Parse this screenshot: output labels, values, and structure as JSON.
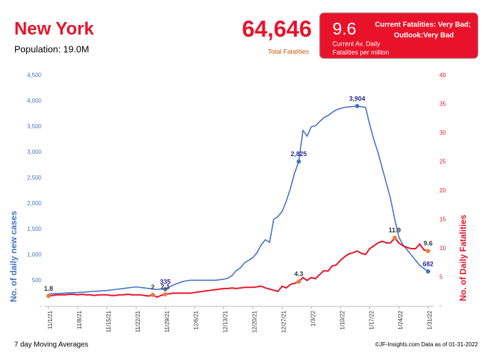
{
  "header": {
    "title": "New York",
    "population": "Population: 19.0M",
    "total": "64,646",
    "total_label": "Total Fatalities",
    "current": "9.6",
    "current_label_1": "Current Av. Daily",
    "current_label_2": "Fatalities per million",
    "status": "Current Fatalities: Very Bad;",
    "outlook": "Outlook:Very Bad"
  },
  "footer": {
    "left": "7 day Moving Averages",
    "right": "©JF-Insights.com  Data as of 01-31-2022"
  },
  "chart_data": {
    "type": "line",
    "ylabel": "No. of daily new  cases",
    "y2label": "No. of Daily Fatalities",
    "categories": [
      "11/1/21",
      null,
      null,
      null,
      null,
      null,
      null,
      "11/8/21",
      null,
      null,
      null,
      null,
      null,
      null,
      "11/15/21",
      null,
      null,
      null,
      null,
      null,
      null,
      "11/22/21",
      null,
      null,
      null,
      null,
      null,
      null,
      "11/29/21",
      null,
      null,
      null,
      null,
      null,
      null,
      "12/6/21",
      null,
      null,
      null,
      null,
      null,
      null,
      "12/13/21",
      null,
      null,
      null,
      null,
      null,
      null,
      "12/20/21",
      null,
      null,
      null,
      null,
      null,
      null,
      "12/27/21",
      null,
      null,
      null,
      null,
      null,
      null,
      "1/3/22",
      null,
      null,
      null,
      null,
      null,
      null,
      "1/10/22",
      null,
      null,
      null,
      null,
      null,
      null,
      "1/17/22",
      null,
      null,
      null,
      null,
      null,
      null,
      "1/24/22",
      null,
      null,
      null,
      null,
      null,
      null,
      "1/31/22"
    ],
    "series": [
      {
        "name": "Cases",
        "color": "#4472c4",
        "axis": "y",
        "values": [
          240,
          245,
          250,
          255,
          260,
          265,
          268,
          270,
          275,
          280,
          290,
          295,
          300,
          305,
          310,
          320,
          330,
          340,
          350,
          360,
          370,
          380,
          370,
          360,
          350,
          340,
          330,
          340,
          335,
          380,
          420,
          450,
          480,
          500,
          510,
          510,
          510,
          510,
          510,
          510,
          510,
          520,
          530,
          550,
          600,
          700,
          750,
          850,
          900,
          950,
          1050,
          1200,
          1300,
          1250,
          1700,
          1750,
          1850,
          2050,
          2300,
          2600,
          2825,
          3430,
          3320,
          3500,
          3520,
          3600,
          3680,
          3720,
          3780,
          3830,
          3860,
          3880,
          3890,
          3895,
          3904,
          3890,
          3880,
          3550,
          3250,
          3000,
          2700,
          2400,
          2100,
          1700,
          1350,
          1200,
          1100,
          1000,
          900,
          800,
          740,
          682
        ],
        "value_labels": [
          null,
          null,
          null,
          null,
          null,
          null,
          null,
          null,
          null,
          null,
          null,
          null,
          null,
          null,
          null,
          null,
          null,
          null,
          null,
          null,
          null,
          null,
          null,
          null,
          null,
          null,
          null,
          null,
          "335",
          null,
          null,
          null,
          null,
          null,
          null,
          null,
          null,
          null,
          null,
          null,
          null,
          null,
          null,
          null,
          null,
          null,
          null,
          null,
          null,
          null,
          null,
          null,
          null,
          null,
          null,
          null,
          null,
          null,
          null,
          null,
          "2,825",
          null,
          null,
          null,
          null,
          null,
          null,
          null,
          null,
          null,
          null,
          null,
          null,
          null,
          "3,904",
          null,
          null,
          null,
          null,
          null,
          null,
          null,
          null,
          null,
          null,
          null,
          null,
          null,
          null,
          null,
          null,
          "682"
        ]
      },
      {
        "name": "Fatalities",
        "color": "#e8132a",
        "axis": "y2",
        "values": [
          1.8,
          1.9,
          2.0,
          2.0,
          2.0,
          2.1,
          2.1,
          2.0,
          2.1,
          2.0,
          2.0,
          1.9,
          2.0,
          2.0,
          2.0,
          1.9,
          1.9,
          2.0,
          2.0,
          2.1,
          2.0,
          2.0,
          2.0,
          1.9,
          1.8,
          2,
          1.6,
          1.9,
          2.1,
          2.2,
          2.3,
          2.3,
          2.3,
          2.3,
          2.3,
          2.4,
          2.5,
          2.6,
          2.7,
          2.8,
          2.9,
          3.0,
          3.1,
          3.1,
          3.2,
          3.1,
          3.2,
          3.3,
          3.3,
          3.3,
          3.4,
          3.5,
          3.2,
          3.0,
          2.8,
          2.6,
          3.5,
          3.2,
          3.8,
          4.0,
          4.3,
          5.0,
          4.5,
          5.0,
          4.8,
          5.5,
          6.2,
          6.1,
          7.0,
          7.2,
          8.0,
          8.6,
          9.1,
          9.3,
          9.6,
          9.2,
          9.0,
          10.0,
          10.5,
          11.0,
          11.3,
          11.0,
          11.0,
          11.9,
          11.0,
          10.5,
          10.2,
          10.0,
          10.0,
          10.8,
          9.8,
          9.6
        ],
        "value_labels": [
          "1.8",
          null,
          null,
          null,
          null,
          null,
          null,
          null,
          null,
          null,
          null,
          null,
          null,
          null,
          null,
          null,
          null,
          null,
          null,
          null,
          null,
          null,
          null,
          null,
          null,
          "2",
          null,
          null,
          "2.1",
          null,
          null,
          null,
          null,
          null,
          null,
          null,
          null,
          null,
          null,
          null,
          null,
          null,
          null,
          null,
          null,
          null,
          null,
          null,
          null,
          null,
          null,
          null,
          null,
          null,
          null,
          null,
          null,
          null,
          null,
          null,
          "4.3",
          null,
          null,
          null,
          null,
          null,
          null,
          null,
          null,
          null,
          null,
          null,
          null,
          null,
          null,
          null,
          null,
          null,
          null,
          null,
          null,
          null,
          null,
          "11.9",
          null,
          null,
          null,
          null,
          null,
          null,
          null,
          "9.6"
        ]
      }
    ],
    "ylim": [
      0,
      4500
    ],
    "yticks": [
      {
        "value": 0,
        "label": "-"
      },
      500,
      {
        "value": 1000,
        "label": "1,000"
      },
      {
        "value": 1500,
        "label": "1,500"
      },
      {
        "value": 2000,
        "label": "2,000"
      },
      {
        "value": 2500,
        "label": "2,500"
      },
      {
        "value": 3000,
        "label": "3,000"
      },
      {
        "value": 3500,
        "label": "3,500"
      },
      {
        "value": 4000,
        "label": "4,000"
      },
      {
        "value": 4500,
        "label": "4,500"
      }
    ],
    "y2lim": [
      0,
      40
    ],
    "y2ticks": [
      {
        "value": 0,
        "label": "-"
      },
      5,
      10,
      15,
      20,
      25,
      30,
      35,
      40
    ],
    "grid": false
  }
}
